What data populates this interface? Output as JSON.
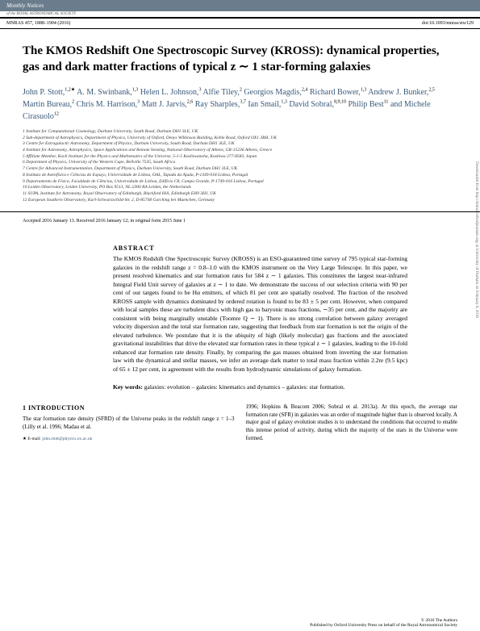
{
  "journal": {
    "banner": "Monthly Notices",
    "sub": "of the ROYAL ASTRONOMICAL SOCIETY",
    "citation": "MNRAS 457, 1888–1904 (2016)",
    "doi": "doi:10.1093/mnras/stw129"
  },
  "title": "The KMOS Redshift One Spectroscopic Survey (KROSS): dynamical properties, gas and dark matter fractions of typical z ∼ 1 star-forming galaxies",
  "authors_html": "John P. Stott,<sup>1,2★</sup> A. M. Swinbank,<sup>1,3</sup> Helen L. Johnson,<sup>3</sup> Alfie Tiley,<sup>2</sup> Georgios Magdis,<sup>2,4</sup> Richard Bower,<sup>1,3</sup> Andrew J. Bunker,<sup>2,5</sup> Martin Bureau,<sup>2</sup> Chris M. Harrison,<sup>3</sup> Matt J. Jarvis,<sup>2,6</sup> Ray Sharples,<sup>3,7</sup> Ian Smail,<sup>1,3</sup> David Sobral,<sup>8,9,10</sup> Philip Best<sup>11</sup> and Michele Cirasuolo<sup>12</sup>",
  "affiliations": [
    "1 Institute for Computational Cosmology, Durham University, South Road, Durham DH1 3LE, UK",
    "2 Sub-department of Astrophysics, Department of Physics, University of Oxford, Denys Wilkinson Building, Keble Road, Oxford OX1 3RH, UK",
    "3 Centre for Extragalactic Astronomy, Department of Physics, Durham University, South Road, Durham DH1 3LE, UK",
    "4 Institute for Astronomy, Astrophysics, Space Applications and Remote Sensing, National Observatory of Athens, GR-15236 Athens, Greece",
    "5 Affiliate Member, Kavli Institute for the Physics and Mathematics of the Universe, 5-1-5 Kashiwanoha, Kashiwa 277-8583, Japan",
    "6 Department of Physics, University of the Western Cape, Bellville 7535, South Africa",
    "7 Centre for Advanced Instrumentation, Department of Physics, Durham University, South Road, Durham DH1 3LE, UK",
    "8 Instituto de Astrofísica e Ciências do Espaço, Universidade de Lisboa, OAL, Tapada da Ajuda, P-1349-018 Lisboa, Portugal",
    "9 Departamento de Física, Faculdade de Ciências, Universidade de Lisboa, Edifício C8, Campo Grande, P-1749-016 Lisboa, Portugal",
    "10 Leiden Observatory, Leiden University, PO Box 9513, NL-2300 RA Leiden, the Netherlands",
    "11 SUPA, Institute for Astronomy, Royal Observatory of Edinburgh, Blackford Hill, Edinburgh EH9 3HJ, UK",
    "12 European Southern Observatory, Karl-Schwarzschild-Str. 2, D-85748 Garching bei Muenchen, Germany"
  ],
  "dates": "Accepted 2016 January 13. Received 2016 January 12; in original form 2015 June 1",
  "abstract": {
    "heading": "ABSTRACT",
    "text": "The KMOS Redshift One Spectroscopic Survey (KROSS) is an ESO-guaranteed time survey of 795 typical star-forming galaxies in the redshift range z = 0.8–1.0 with the KMOS instrument on the Very Large Telescope. In this paper, we present resolved kinematics and star formation rates for 584 z ∼ 1 galaxies. This constitutes the largest near-infrared Integral Field Unit survey of galaxies at z ∼ 1 to date. We demonstrate the success of our selection criteria with 90 per cent of our targets found to be Hα emitters, of which 81 per cent are spatially resolved. The fraction of the resolved KROSS sample with dynamics dominated by ordered rotation is found to be 83 ± 5 per cent. However, when compared with local samples these are turbulent discs with high gas to baryonic mass fractions, ∼35 per cent, and the majority are consistent with being marginally unstable (Toomre Q ∼ 1). There is no strong correlation between galaxy averaged velocity dispersion and the total star formation rate, suggesting that feedback from star formation is not the origin of the elevated turbulence. We postulate that it is the ubiquity of high (likely molecular) gas fractions and the associated gravitational instabilities that drive the elevated star formation rates in these typical z ∼ 1 galaxies, leading to the 10-fold enhanced star formation rate density. Finally, by comparing the gas masses obtained from inverting the star formation law with the dynamical and stellar masses, we infer an average dark matter to total mass fraction within 2.2re (9.5 kpc) of 65 ± 12 per cent, in agreement with the results from hydrodynamic simulations of galaxy formation."
  },
  "keywords": {
    "label": "Key words:",
    "text": "galaxies: evolution – galaxies: kinematics and dynamics – galaxies: star formation."
  },
  "intro": {
    "heading": "1 INTRODUCTION",
    "col1": "The star formation rate density (SFRD) of the Universe peaks in the redshift range z = 1–3 (Lilly et al. 1996; Madau et al.",
    "col2": "1996; Hopkins & Beacom 2006; Sobral et al. 2013a). At this epoch, the average star formation rate (SFR) in galaxies was an order of magnitude higher than is observed locally. A major goal of galaxy evolution studies is to understand the conditions that occurred to enable this intense period of activity, during which the majority of the stars in the Universe were formed."
  },
  "footnote": {
    "star": "★ E-mail:",
    "email": "john.stott@physics.ox.ac.uk"
  },
  "footer": {
    "right1": "© 2016 The Authors",
    "right2": "Published by Oxford University Press on behalf of the Royal Astronomical Society"
  },
  "sidetext": "Downloaded from http://mnras.oxfordjournals.org/ at University of Durham on February 9, 2016"
}
